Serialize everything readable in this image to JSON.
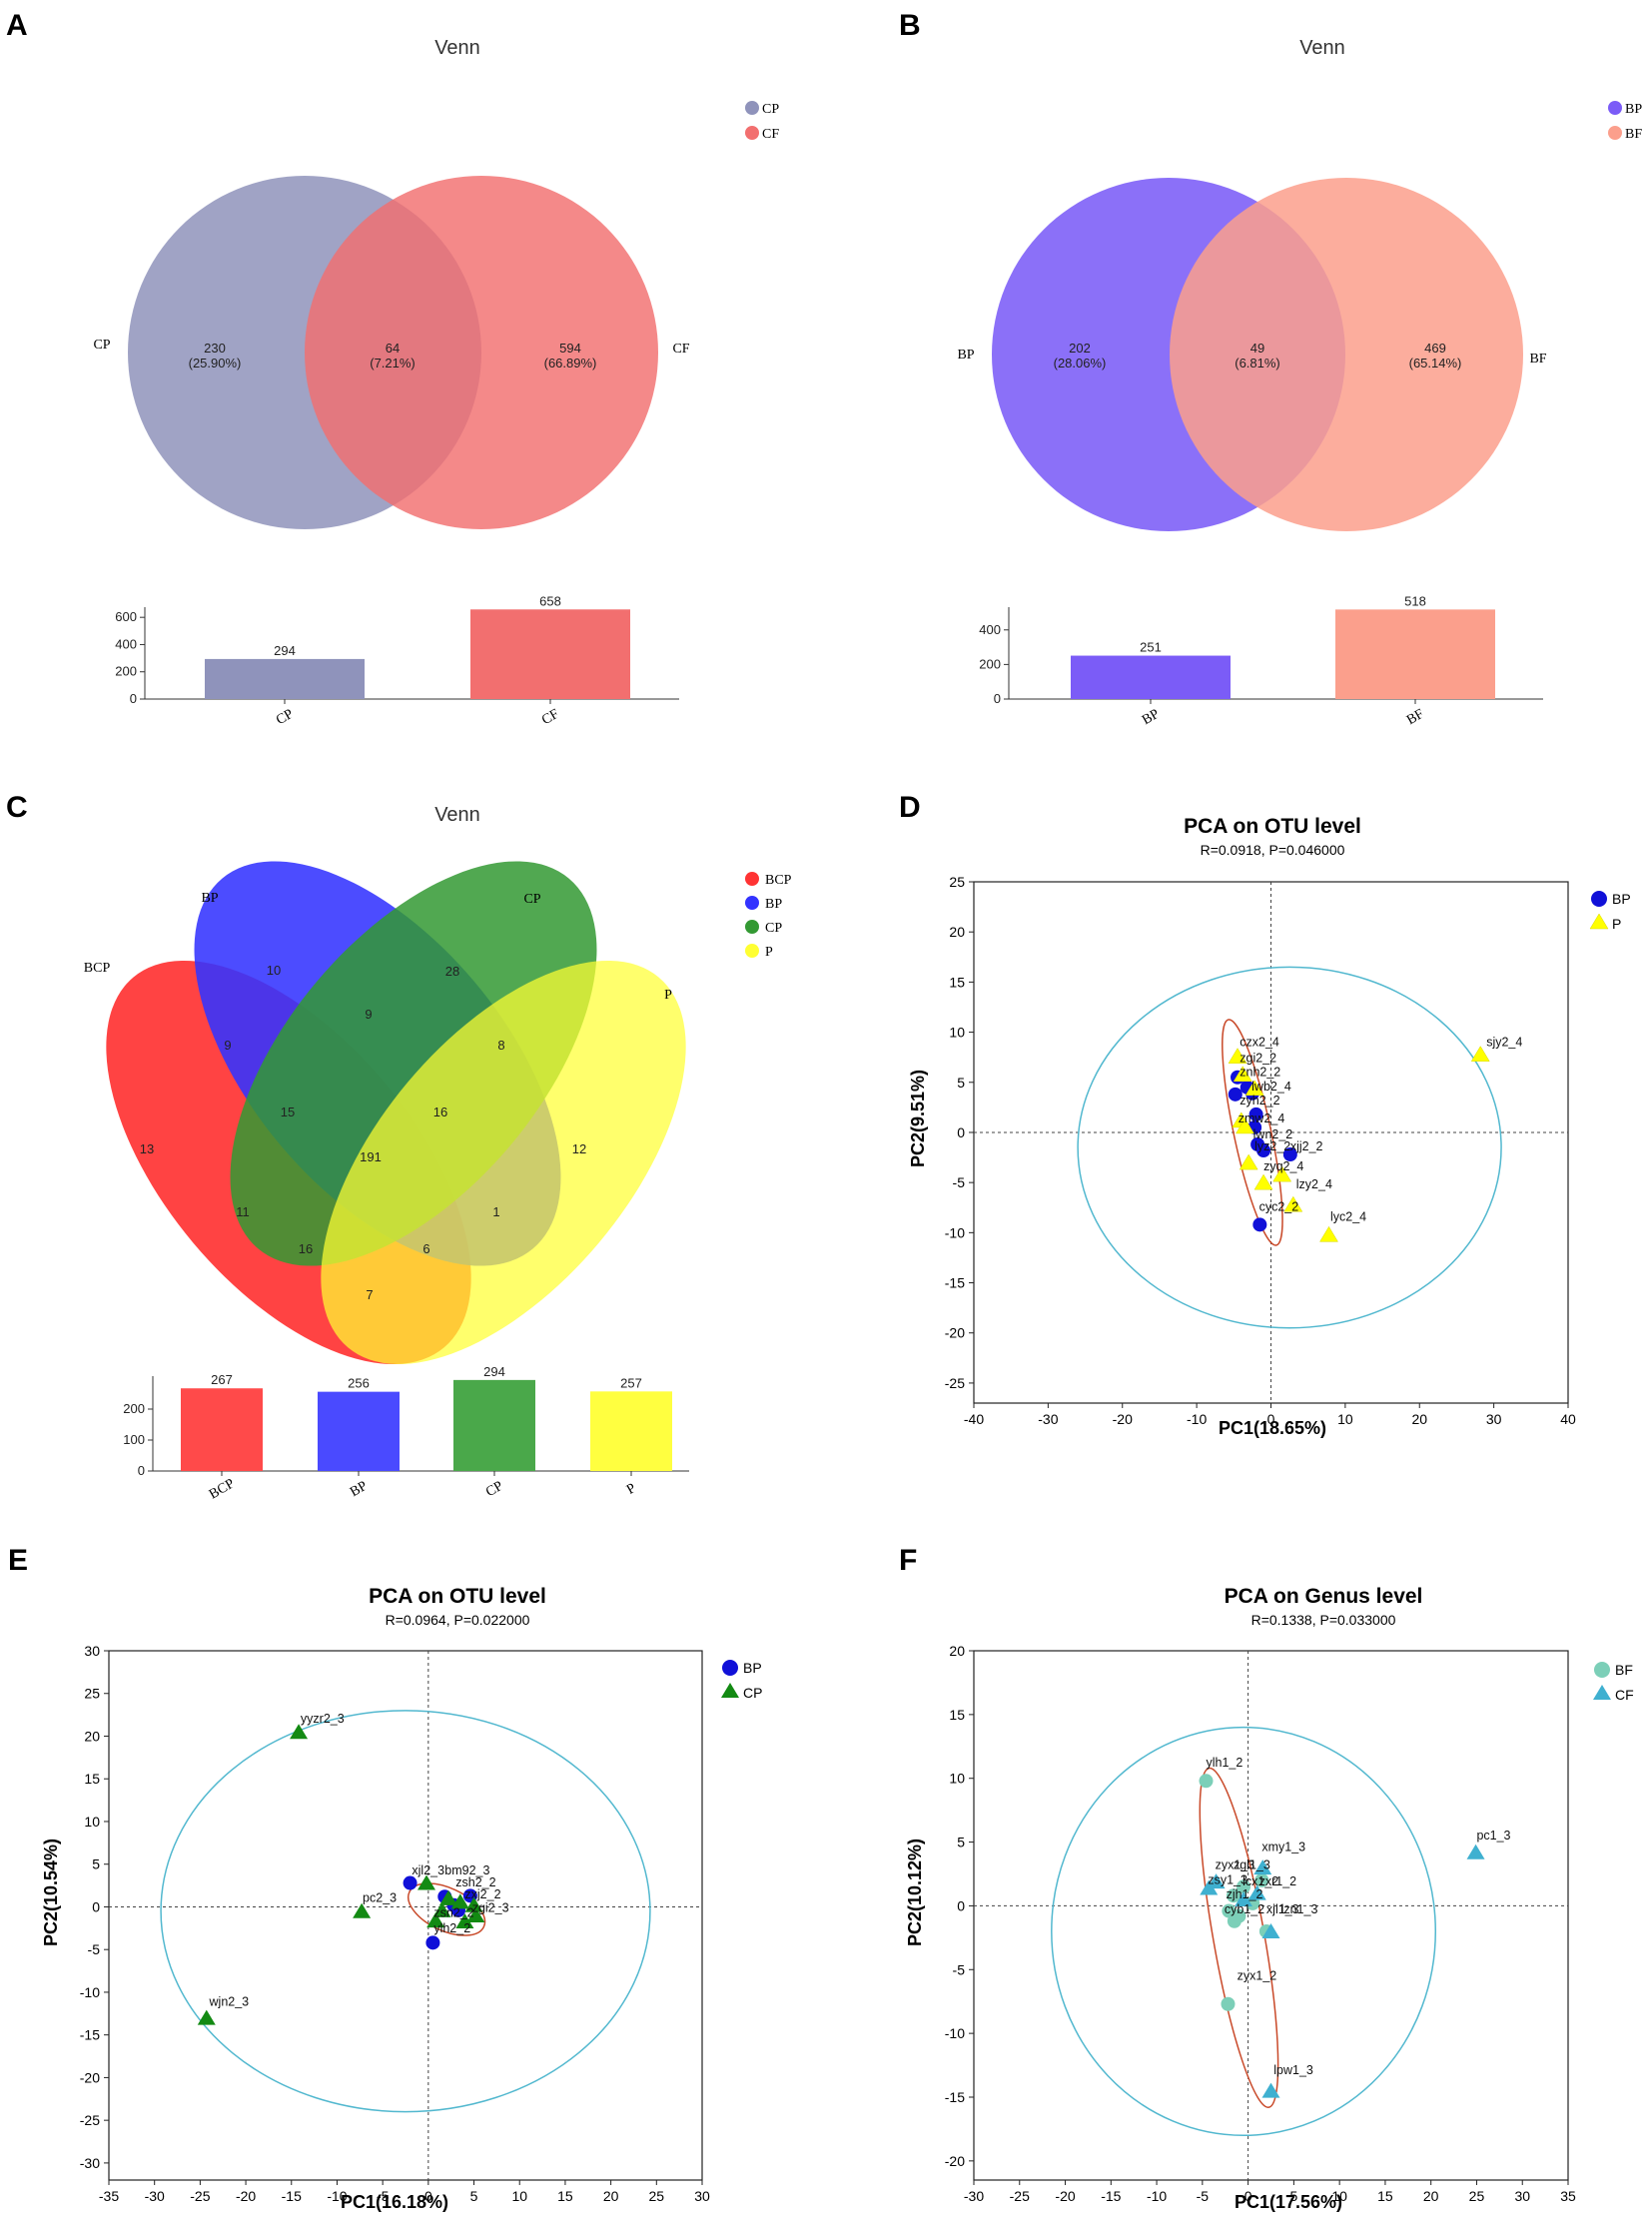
{
  "panels": {
    "A": {
      "letter": "A",
      "title": "Venn"
    },
    "B": {
      "letter": "B",
      "title": "Venn"
    },
    "C": {
      "letter": "C",
      "title": "Venn"
    },
    "D": {
      "letter": "D",
      "title": "PCA on OTU level",
      "subtitle": "R=0.0918, P=0.046000",
      "xlabel": "PC1(18.65%)",
      "ylabel": "PC2(9.51%)"
    },
    "E": {
      "letter": "E",
      "title": "PCA on OTU level",
      "subtitle": "R=0.0964, P=0.022000",
      "xlabel": "PC1(16.18%)",
      "ylabel": "PC2(10.54%)"
    },
    "F": {
      "letter": "F",
      "title": "PCA on Genus level",
      "subtitle": "R=0.1338, P=0.033000",
      "xlabel": "PC1(17.56%)",
      "ylabel": "PC2(10.12%)"
    }
  },
  "colors": {
    "CP_A": "#8f93bb",
    "CF": "#f26f6f",
    "BP_B": "#7b5cf7",
    "BF": "#fb9f8c",
    "BCP": "#ff3333",
    "BP_C": "#3333ff",
    "CP_C": "#339933",
    "P_C": "#ffff33",
    "blue": "#1010d8",
    "yellow": "#ffff00",
    "green": "#138a13",
    "teal": "#7ccfb8",
    "cyan": "#3fb0d0",
    "outer_ellipse": "#52b8cf",
    "inner_ellipse": "#c94a2a"
  },
  "chart_data": [
    {
      "panel": "A",
      "type": "venn",
      "sets": [
        "CP",
        "CF"
      ],
      "regions": [
        {
          "label": "CP only",
          "count": "230",
          "pct": "(25.90%)"
        },
        {
          "label": "CP∩CF",
          "count": "64",
          "pct": "(7.21%)"
        },
        {
          "label": "CF only",
          "count": "594",
          "pct": "(66.89%)"
        }
      ],
      "legend": [
        "CP",
        "CF"
      ],
      "bar": {
        "type": "bar",
        "categories": [
          "CP",
          "CF"
        ],
        "values": [
          294,
          658
        ],
        "ylim": [
          0,
          660
        ],
        "yticks": [
          0,
          200,
          400,
          600
        ]
      }
    },
    {
      "panel": "B",
      "type": "venn",
      "sets": [
        "BP",
        "BF"
      ],
      "regions": [
        {
          "label": "BP only",
          "count": "202",
          "pct": "(28.06%)"
        },
        {
          "label": "BP∩BF",
          "count": "49",
          "pct": "(6.81%)"
        },
        {
          "label": "BF only",
          "count": "469",
          "pct": "(65.14%)"
        }
      ],
      "legend": [
        "BP",
        "BF"
      ],
      "bar": {
        "type": "bar",
        "categories": [
          "BP",
          "BF"
        ],
        "values": [
          251,
          518
        ],
        "ylim": [
          0,
          520
        ],
        "yticks": [
          0,
          200,
          400
        ]
      }
    },
    {
      "panel": "C",
      "type": "venn",
      "sets": [
        "BCP",
        "BP",
        "CP",
        "P"
      ],
      "region_counts": [
        "13",
        "10",
        "28",
        "12",
        "9",
        "8",
        "9",
        "15",
        "16",
        "191",
        "11",
        "1",
        "16",
        "6",
        "7"
      ],
      "legend": [
        "BCP",
        "BP",
        "CP",
        "P"
      ],
      "bar": {
        "type": "bar",
        "categories": [
          "BCP",
          "BP",
          "CP",
          "P"
        ],
        "values": [
          267,
          256,
          294,
          257
        ],
        "ylim": [
          0,
          300
        ],
        "yticks": [
          0,
          100,
          200
        ]
      }
    },
    {
      "panel": "D",
      "type": "scatter",
      "xlim": [
        -40,
        40
      ],
      "ylim": [
        -27,
        25
      ],
      "xticks": [
        -40,
        -30,
        -20,
        -10,
        0,
        10,
        20,
        30,
        40
      ],
      "yticks": [
        -25,
        -20,
        -15,
        -10,
        -5,
        0,
        5,
        10,
        15,
        20,
        25
      ],
      "legend": [
        "BP",
        "P"
      ],
      "series": [
        {
          "name": "BP",
          "marker": "circle",
          "color": "#1010d8",
          "points": [
            [
              -4.5,
              5.5
            ],
            [
              -4.8,
              3.8
            ],
            [
              -3.2,
              4.5
            ],
            [
              -2.5,
              3.9
            ],
            [
              -2.0,
              1.8
            ],
            [
              -2.2,
              0.5
            ],
            [
              -1.8,
              -1.2
            ],
            [
              -1.0,
              -1.8
            ],
            [
              2.6,
              -2.2
            ],
            [
              -1.5,
              -9.2
            ]
          ]
        },
        {
          "name": "P",
          "marker": "triangle",
          "color": "#ffff00",
          "points": [
            [
              28.2,
              7.8
            ],
            [
              -4.5,
              7.6
            ],
            [
              -3.8,
              5.8
            ],
            [
              -2.2,
              4.4
            ],
            [
              -4.0,
              1.2
            ],
            [
              -3.5,
              0.6
            ],
            [
              -3.0,
              -3.0
            ],
            [
              -1.0,
              -5.0
            ],
            [
              3.0,
              -7.2
            ],
            [
              7.8,
              -10.2
            ],
            [
              1.5,
              -4.2
            ]
          ]
        }
      ],
      "labels": [
        {
          "t": "sjy2_4",
          "x": 29.0,
          "y": 8.6
        },
        {
          "t": "czx2_4",
          "x": -4.2,
          "y": 8.6
        },
        {
          "t": "zgi2_2",
          "x": -4.2,
          "y": 7.0
        },
        {
          "t": "znh2_2",
          "x": -4.2,
          "y": 5.6
        },
        {
          "t": "lwb2_4",
          "x": -2.6,
          "y": 4.2
        },
        {
          "t": "zyh2_2",
          "x": -4.2,
          "y": 2.8
        },
        {
          "t": "zmw2_4",
          "x": -4.4,
          "y": 1.0
        },
        {
          "t": "lwn2_2",
          "x": -2.4,
          "y": -0.6
        },
        {
          "t": "lyz2_2",
          "x": -2.2,
          "y": -1.8
        },
        {
          "t": "xjj2_2",
          "x": 2.6,
          "y": -1.8
        },
        {
          "t": "zyq2_4",
          "x": -1.0,
          "y": -3.8
        },
        {
          "t": "lzy2_4",
          "x": 3.4,
          "y": -5.6
        },
        {
          "t": "cyc2_2",
          "x": -1.6,
          "y": -7.8
        },
        {
          "t": "lyc2_4",
          "x": 8.0,
          "y": -8.8
        }
      ],
      "ellipses": [
        {
          "cx": 2.5,
          "cy": -1.5,
          "rx": 28.5,
          "ry": 18.0,
          "angle": 0
        },
        {
          "cx": -2.5,
          "cy": 0.0,
          "rx": 2.5,
          "ry": 11.5,
          "angle": -12
        }
      ]
    },
    {
      "panel": "E",
      "type": "scatter",
      "xlim": [
        -35,
        30
      ],
      "ylim": [
        -32,
        30
      ],
      "xticks": [
        -35,
        -30,
        -25,
        -20,
        -15,
        -10,
        -5,
        0,
        5,
        10,
        15,
        20,
        25,
        30
      ],
      "yticks": [
        -30,
        -25,
        -20,
        -15,
        -10,
        -5,
        0,
        5,
        10,
        15,
        20,
        25,
        30
      ],
      "legend": [
        "BP",
        "CP"
      ],
      "series": [
        {
          "name": "BP",
          "marker": "circle",
          "color": "#1010d8",
          "points": [
            [
              -2.0,
              2.8
            ],
            [
              1.8,
              1.2
            ],
            [
              2.8,
              0.2
            ],
            [
              3.3,
              -0.4
            ],
            [
              0.5,
              -4.2
            ],
            [
              4.6,
              1.3
            ]
          ]
        },
        {
          "name": "CP",
          "marker": "triangle",
          "color": "#138a13",
          "points": [
            [
              -14.2,
              20.5
            ],
            [
              -24.3,
              -13.0
            ],
            [
              -7.3,
              -0.5
            ],
            [
              -0.2,
              2.8
            ],
            [
              2.2,
              1.0
            ],
            [
              3.5,
              0.6
            ],
            [
              5.0,
              0.2
            ],
            [
              0.8,
              -1.6
            ],
            [
              4.0,
              -1.7
            ],
            [
              5.2,
              -1.0
            ],
            [
              1.5,
              -0.4
            ]
          ]
        }
      ],
      "labels": [
        {
          "t": "yyzr2_3",
          "x": -14.0,
          "y": 21.6
        },
        {
          "t": "wjn2_3",
          "x": -24.0,
          "y": -11.6
        },
        {
          "t": "pc2_3",
          "x": -7.2,
          "y": 0.6
        },
        {
          "t": "xjl2_3",
          "x": -1.8,
          "y": 3.8
        },
        {
          "t": "bm92_3",
          "x": 1.8,
          "y": 3.8
        },
        {
          "t": "zsh2_2",
          "x": 3.0,
          "y": 2.4
        },
        {
          "t": "zxj2_2",
          "x": 4.0,
          "y": 1.0
        },
        {
          "t": "zgi2_3",
          "x": 4.8,
          "y": -0.6
        },
        {
          "t": "zsn2_2",
          "x": 0.6,
          "y": -1.2
        },
        {
          "t": "ylh2_2",
          "x": 0.6,
          "y": -3.0
        }
      ],
      "ellipses": [
        {
          "cx": -2.5,
          "cy": -0.5,
          "rx": 26.8,
          "ry": 23.5,
          "angle": 0
        },
        {
          "cx": 2.0,
          "cy": -0.3,
          "rx": 4.5,
          "ry": 2.5,
          "angle": 25
        }
      ]
    },
    {
      "panel": "F",
      "type": "scatter",
      "xlim": [
        -30,
        35
      ],
      "ylim": [
        -21.5,
        20
      ],
      "xticks": [
        -30,
        -25,
        -20,
        -15,
        -10,
        -5,
        0,
        5,
        10,
        15,
        20,
        25,
        30,
        35
      ],
      "yticks": [
        -20,
        -15,
        -10,
        -5,
        0,
        5,
        10,
        15,
        20
      ],
      "legend": [
        "BF",
        "CF"
      ],
      "series": [
        {
          "name": "BF",
          "marker": "circle",
          "color": "#7ccfb8",
          "points": [
            [
              -4.6,
              9.8
            ],
            [
              -2.2,
              -7.7
            ],
            [
              -1.6,
              0.8
            ],
            [
              -2.1,
              -0.4
            ],
            [
              -1.5,
              -1.2
            ],
            [
              -0.5,
              1.5
            ],
            [
              1.5,
              2.0
            ],
            [
              2.0,
              -2.0
            ],
            [
              0.5,
              0.2
            ],
            [
              -1.0,
              -0.8
            ]
          ]
        },
        {
          "name": "CF",
          "marker": "triangle",
          "color": "#3fb0d0",
          "points": [
            [
              24.9,
              4.2
            ],
            [
              2.5,
              -14.5
            ],
            [
              -4.3,
              1.4
            ],
            [
              -3.5,
              1.9
            ],
            [
              1.6,
              3.0
            ],
            [
              2.5,
              -2.0
            ],
            [
              1.0,
              1.0
            ],
            [
              -0.5,
              0.5
            ]
          ]
        }
      ],
      "labels": [
        {
          "t": "ylh1_2",
          "x": -4.6,
          "y": 10.9
        },
        {
          "t": "pc1_3",
          "x": 25.0,
          "y": 5.2
        },
        {
          "t": "xmy1_3",
          "x": 1.5,
          "y": 4.3
        },
        {
          "t": "zyx1_3",
          "x": -3.6,
          "y": 2.9
        },
        {
          "t": "zgl1_3",
          "x": -1.6,
          "y": 2.9
        },
        {
          "t": "zsy1_3",
          "x": -4.4,
          "y": 1.7
        },
        {
          "t": "zjh1_2",
          "x": -2.4,
          "y": 0.6
        },
        {
          "t": "lcx1_2",
          "x": -0.6,
          "y": 1.6
        },
        {
          "t": "zxr1_2",
          "x": 1.2,
          "y": 1.6
        },
        {
          "t": "cyb1_2",
          "x": -2.6,
          "y": -0.6
        },
        {
          "t": "xjl1_3",
          "x": 2.0,
          "y": -0.6
        },
        {
          "t": "lzn1_3",
          "x": 3.6,
          "y": -0.6
        },
        {
          "t": "zyx1_2",
          "x": -1.2,
          "y": -5.8
        },
        {
          "t": "lpw1_3",
          "x": 2.8,
          "y": -13.2
        }
      ],
      "ellipses": [
        {
          "cx": -0.5,
          "cy": -2.0,
          "rx": 21.0,
          "ry": 16.0,
          "angle": 0
        },
        {
          "cx": -1.0,
          "cy": -2.5,
          "rx": 2.8,
          "ry": 13.5,
          "angle": -10
        }
      ]
    }
  ]
}
